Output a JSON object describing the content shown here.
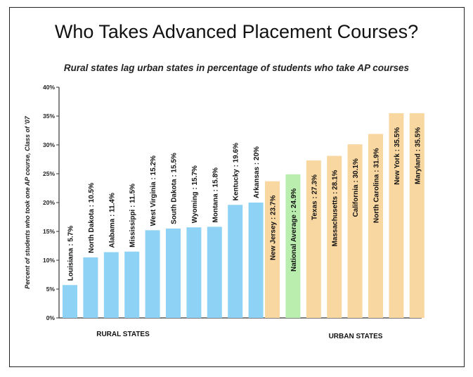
{
  "chart_data": {
    "type": "bar",
    "title": "Who Takes Advanced Placement Courses?",
    "subtitle": "Rural states lag urban states in percentage of students who take AP courses",
    "ylabel": "Percent of students who took one AP course, Class of '07",
    "ylim": [
      0,
      40
    ],
    "yticks": [
      "0%",
      "5%",
      "10%",
      "15%",
      "20%",
      "25%",
      "30%",
      "35%",
      "40%"
    ],
    "grid": false,
    "groups": [
      {
        "name": "RURAL STATES",
        "color": "#8ed2f5",
        "bars": [
          {
            "label": "Louisiana : 5.7%",
            "value": 5.7
          },
          {
            "label": "North Dakota : 10.5%",
            "value": 10.5
          },
          {
            "label": "Alabama : 11.4%",
            "value": 11.4
          },
          {
            "label": "Mississippi : 11.5%",
            "value": 11.5
          },
          {
            "label": "West Virginia : 15.2%",
            "value": 15.2
          },
          {
            "label": "South Dakota : 15.5%",
            "value": 15.5
          },
          {
            "label": "Wyoming : 15.7%",
            "value": 15.7
          },
          {
            "label": "Montana : 15.8%",
            "value": 15.8
          },
          {
            "label": "Kentucky : 19.6%",
            "value": 19.6
          },
          {
            "label": "Arkansas : 20%",
            "value": 20
          }
        ]
      },
      {
        "name": "URBAN STATES",
        "color": "#f9d7a1",
        "bars": [
          {
            "label": "New Jersey : 23.7%",
            "value": 23.7
          },
          {
            "label": "National Average : 24.9%",
            "value": 24.9,
            "color": "#b9eeae"
          },
          {
            "label": "Texas : 27.3%",
            "value": 27.3
          },
          {
            "label": "Massachusetts : 28.1%",
            "value": 28.1
          },
          {
            "label": "California : 30.1%",
            "value": 30.1
          },
          {
            "label": "North Carolina : 31.9%",
            "value": 31.9
          },
          {
            "label": "New York : 35.5%",
            "value": 35.5
          },
          {
            "label": "Maryland : 35.5%",
            "value": 35.5
          }
        ]
      }
    ]
  }
}
